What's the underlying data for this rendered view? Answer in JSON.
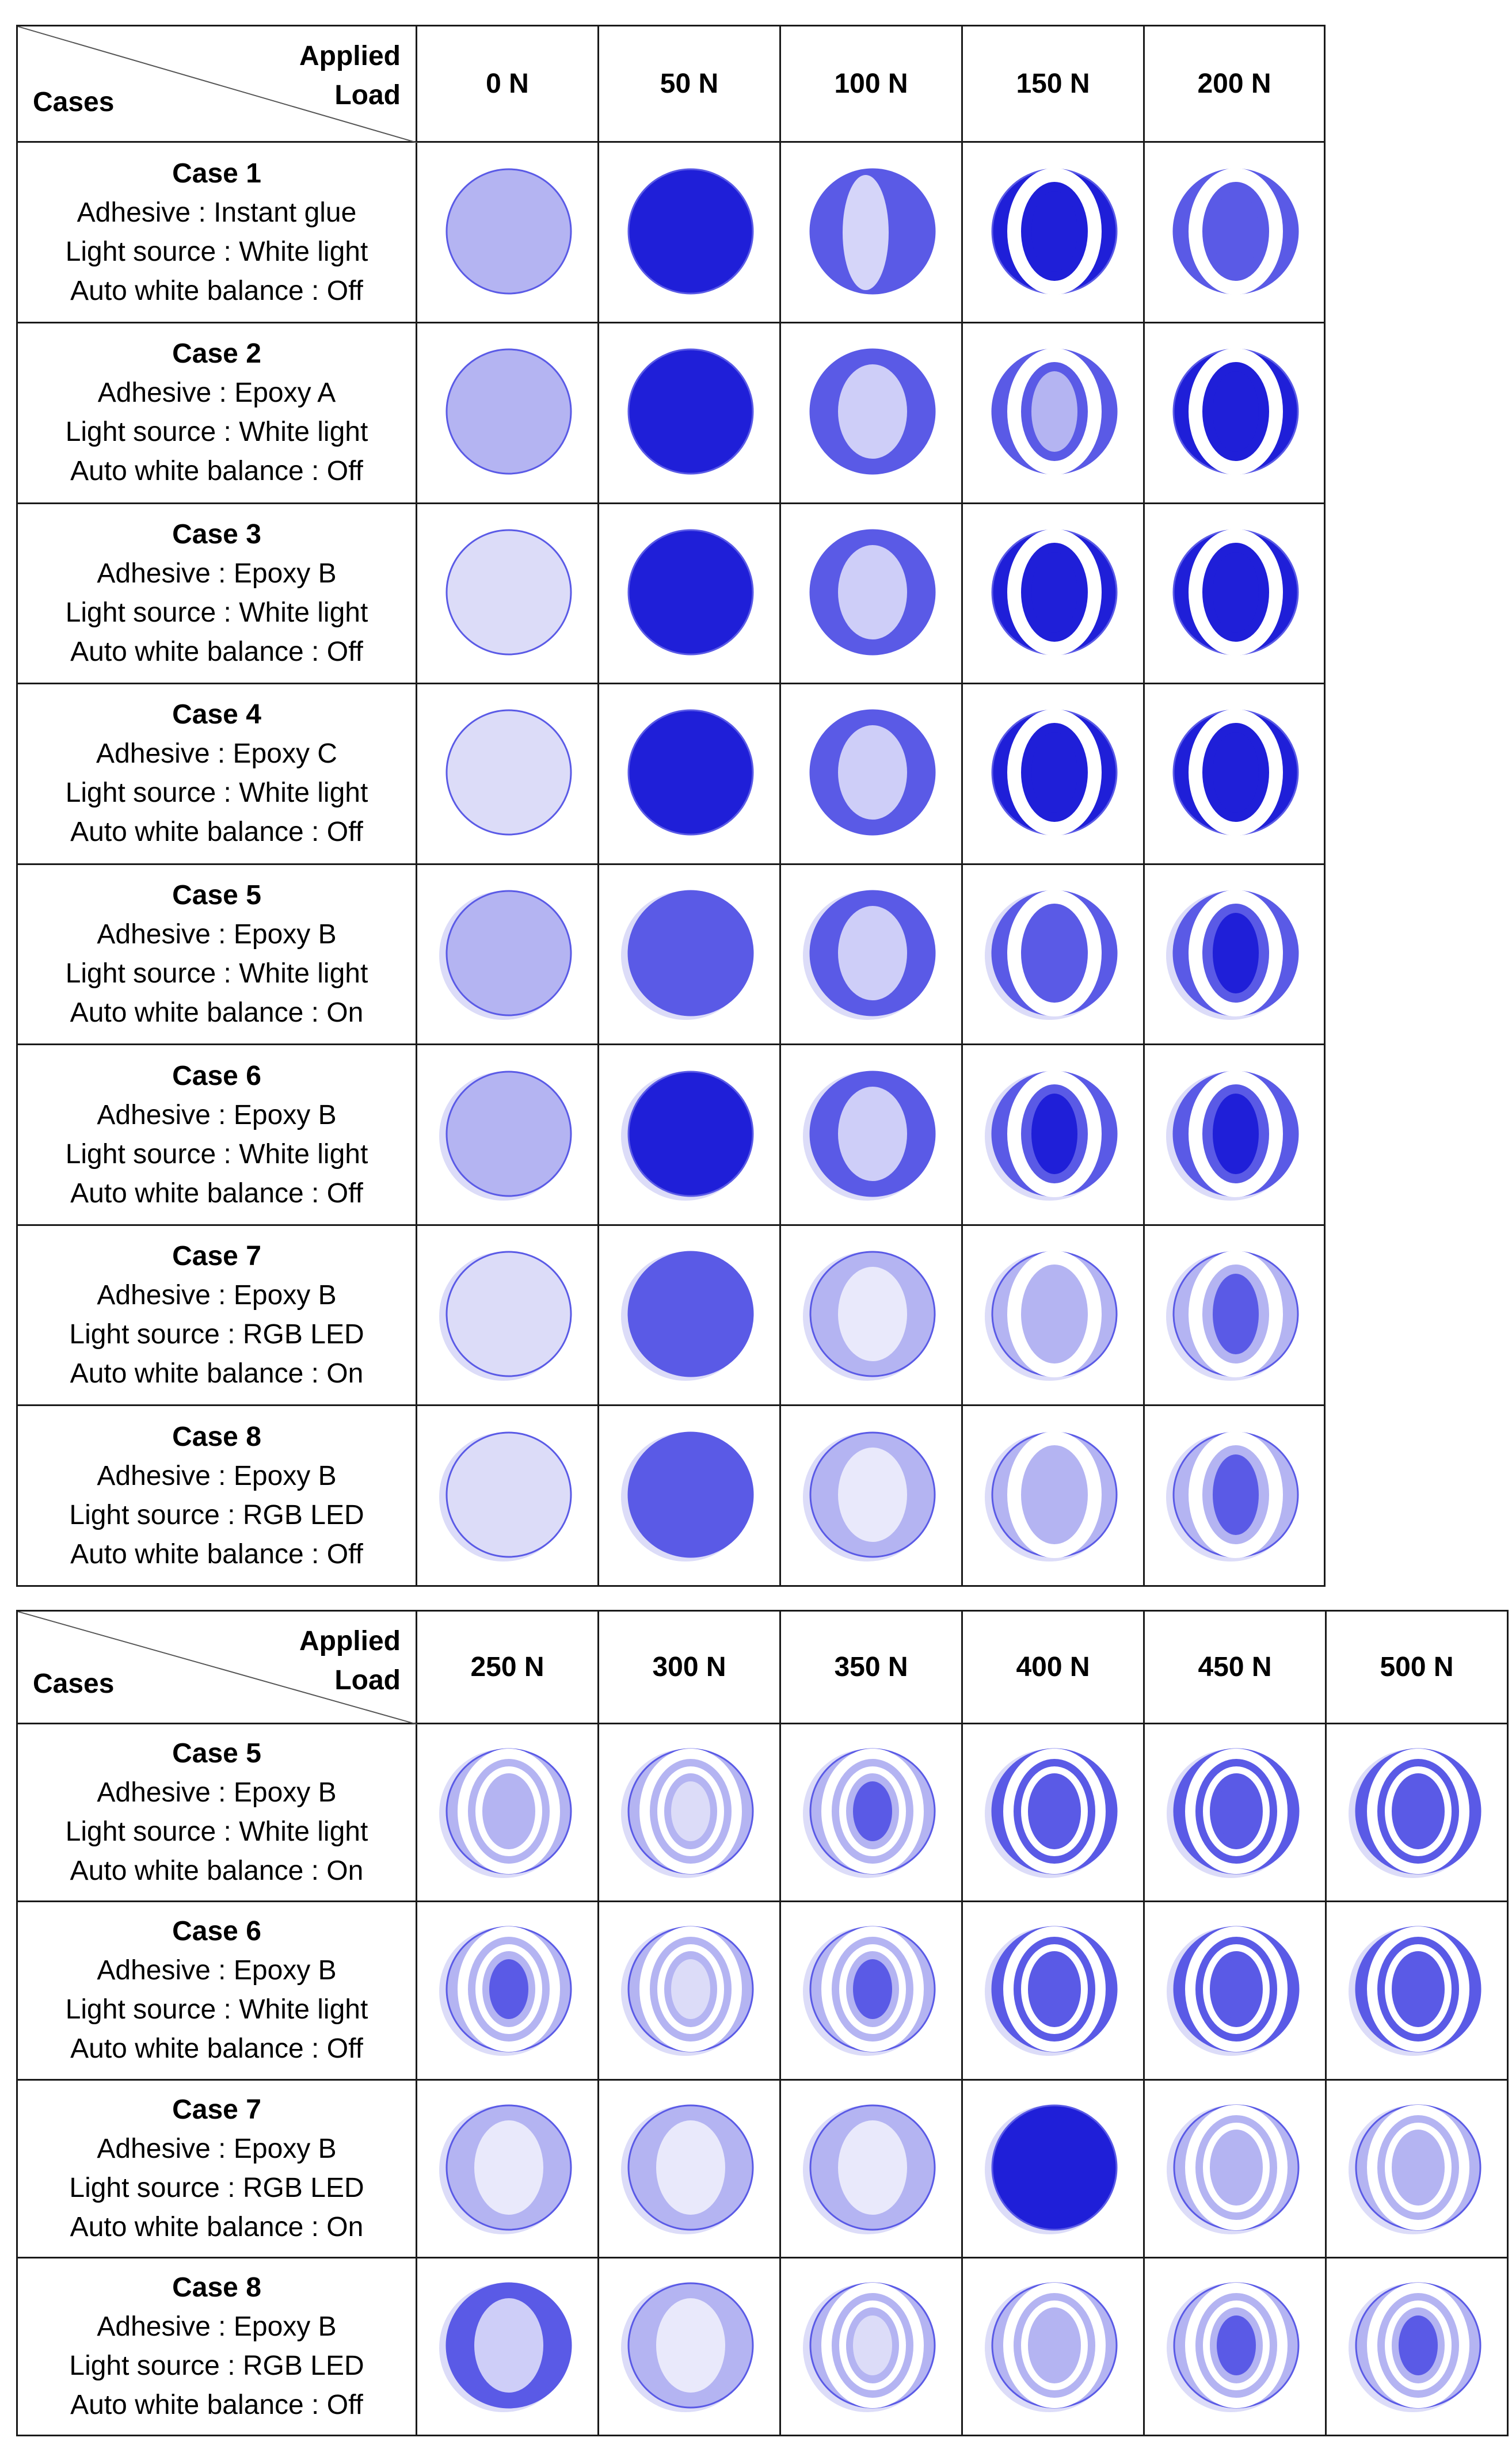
{
  "corner": {
    "applied": "Applied",
    "load": "Load",
    "cases": "Cases"
  },
  "case_field_labels": {
    "adhesive": "Adhesive",
    "light": "Light source",
    "awb": "Auto white balance"
  },
  "table1": {
    "loads": [
      "0 N",
      "50 N",
      "100 N",
      "150 N",
      "200 N"
    ],
    "rows": [
      {
        "title": "Case 1",
        "adhesive": "Instant glue",
        "light": "White light",
        "awb": "Off"
      },
      {
        "title": "Case 2",
        "adhesive": "Epoxy A",
        "light": "White light",
        "awb": "Off"
      },
      {
        "title": "Case 3",
        "adhesive": "Epoxy B",
        "light": "White light",
        "awb": "Off"
      },
      {
        "title": "Case 4",
        "adhesive": "Epoxy C",
        "light": "White light",
        "awb": "Off"
      },
      {
        "title": "Case 5",
        "adhesive": "Epoxy B",
        "light": "White light",
        "awb": "On"
      },
      {
        "title": "Case 6",
        "adhesive": "Epoxy B",
        "light": "White light",
        "awb": "Off"
      },
      {
        "title": "Case 7",
        "adhesive": "Epoxy B",
        "light": "RGB LED",
        "awb": "On"
      },
      {
        "title": "Case 8",
        "adhesive": "Epoxy B",
        "light": "RGB LED",
        "awb": "Off"
      }
    ]
  },
  "table2": {
    "loads": [
      "250 N",
      "300 N",
      "350 N",
      "400 N",
      "450 N",
      "500 N"
    ],
    "rows": [
      {
        "title": "Case 5",
        "adhesive": "Epoxy B",
        "light": "White light",
        "awb": "On"
      },
      {
        "title": "Case 6",
        "adhesive": "Epoxy B",
        "light": "White light",
        "awb": "Off"
      },
      {
        "title": "Case 7",
        "adhesive": "Epoxy B",
        "light": "RGB LED",
        "awb": "On"
      },
      {
        "title": "Case 8",
        "adhesive": "Epoxy B",
        "light": "RGB LED",
        "awb": "Off"
      }
    ]
  },
  "colors": {
    "blue_dark": "#1f1fd8",
    "blue_mid": "#5a5ae6",
    "blue_light": "#b4b4f2",
    "blue_pale": "#dcdcf8",
    "white": "#ffffff"
  }
}
